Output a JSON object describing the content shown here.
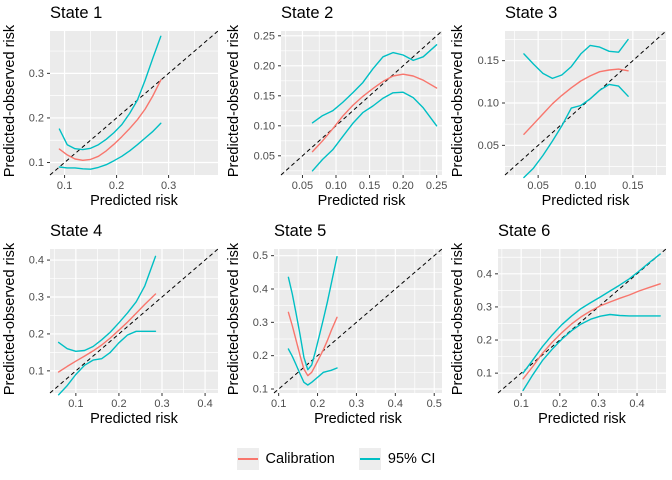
{
  "colors": {
    "panel_background": "#EBEBEB",
    "gridline": "#FFFFFF",
    "calibration": "#F8766D",
    "ci": "#00BFC4",
    "reference": "#000000",
    "tick_text": "#4D4D4D",
    "tick_mark": "#333333"
  },
  "legend": {
    "items": [
      {
        "label": "Calibration",
        "color": "#F8766D"
      },
      {
        "label": "95% CI",
        "color": "#00BFC4"
      }
    ]
  },
  "chart_data": [
    {
      "type": "line",
      "title": "State 1",
      "xlabel": "Predicted risk",
      "ylabel": "Predicted-observed risk",
      "xlim": [
        0.072,
        0.395
      ],
      "ylim": [
        0.072,
        0.395
      ],
      "xticks": {
        "values": [
          0.1,
          0.2,
          0.3
        ],
        "labels": [
          "0.1",
          "0.2",
          "0.3"
        ]
      },
      "yticks": {
        "values": [
          0.1,
          0.2,
          0.3
        ],
        "labels": [
          "0.1",
          "0.2",
          "0.3"
        ]
      },
      "reference_line": "y = x (dashed)",
      "series": [
        {
          "name": "Calibration",
          "color_key": "calibration",
          "x": [
            0.09,
            0.105,
            0.12,
            0.135,
            0.15,
            0.165,
            0.18,
            0.195,
            0.21,
            0.225,
            0.24,
            0.255,
            0.27,
            0.285
          ],
          "y": [
            0.13,
            0.117,
            0.108,
            0.105,
            0.107,
            0.114,
            0.126,
            0.141,
            0.158,
            0.176,
            0.196,
            0.22,
            0.25,
            0.285
          ]
        },
        {
          "name": "95% CI upper",
          "color_key": "ci",
          "x": [
            0.09,
            0.105,
            0.12,
            0.135,
            0.15,
            0.165,
            0.18,
            0.195,
            0.21,
            0.225,
            0.24,
            0.255,
            0.27,
            0.285
          ],
          "y": [
            0.175,
            0.14,
            0.131,
            0.129,
            0.132,
            0.14,
            0.152,
            0.167,
            0.185,
            0.21,
            0.24,
            0.285,
            0.335,
            0.383
          ]
        },
        {
          "name": "95% CI lower",
          "color_key": "ci",
          "x": [
            0.09,
            0.105,
            0.12,
            0.135,
            0.15,
            0.165,
            0.18,
            0.195,
            0.21,
            0.225,
            0.24,
            0.255,
            0.27,
            0.285
          ],
          "y": [
            0.09,
            0.088,
            0.088,
            0.086,
            0.085,
            0.089,
            0.095,
            0.104,
            0.114,
            0.126,
            0.14,
            0.155,
            0.17,
            0.188
          ]
        }
      ]
    },
    {
      "type": "line",
      "title": "State 2",
      "xlabel": "Predicted risk",
      "ylabel": "Predicted-observed risk",
      "xlim": [
        0.018,
        0.258
      ],
      "ylim": [
        0.018,
        0.258
      ],
      "xticks": {
        "values": [
          0.05,
          0.1,
          0.15,
          0.2,
          0.25
        ],
        "labels": [
          "0.05",
          "0.10",
          "0.15",
          "0.20",
          "0.25"
        ]
      },
      "yticks": {
        "values": [
          0.05,
          0.1,
          0.15,
          0.2,
          0.25
        ],
        "labels": [
          "0.05",
          "0.10",
          "0.15",
          "0.20",
          "0.25"
        ]
      },
      "reference_line": "y = x (dashed)",
      "series": [
        {
          "name": "Calibration",
          "color_key": "calibration",
          "x": [
            0.065,
            0.08,
            0.095,
            0.11,
            0.125,
            0.14,
            0.155,
            0.17,
            0.185,
            0.2,
            0.215,
            0.23,
            0.25
          ],
          "y": [
            0.057,
            0.075,
            0.095,
            0.116,
            0.134,
            0.149,
            0.162,
            0.174,
            0.183,
            0.186,
            0.183,
            0.176,
            0.163
          ]
        },
        {
          "name": "95% CI upper",
          "color_key": "ci",
          "x": [
            0.065,
            0.08,
            0.095,
            0.11,
            0.125,
            0.14,
            0.155,
            0.17,
            0.185,
            0.2,
            0.215,
            0.23,
            0.25
          ],
          "y": [
            0.105,
            0.117,
            0.125,
            0.139,
            0.155,
            0.172,
            0.195,
            0.215,
            0.222,
            0.218,
            0.209,
            0.215,
            0.235
          ]
        },
        {
          "name": "95% CI lower",
          "color_key": "ci",
          "x": [
            0.065,
            0.08,
            0.095,
            0.11,
            0.125,
            0.14,
            0.155,
            0.17,
            0.185,
            0.2,
            0.215,
            0.23,
            0.25
          ],
          "y": [
            0.025,
            0.044,
            0.06,
            0.082,
            0.104,
            0.122,
            0.133,
            0.146,
            0.155,
            0.156,
            0.147,
            0.13,
            0.1
          ]
        }
      ]
    },
    {
      "type": "line",
      "title": "State 3",
      "xlabel": "Predicted risk",
      "ylabel": "Predicted-observed risk",
      "xlim": [
        0.015,
        0.185
      ],
      "ylim": [
        0.015,
        0.185
      ],
      "xticks": {
        "values": [
          0.05,
          0.1,
          0.15
        ],
        "labels": [
          "0.05",
          "0.10",
          "0.15"
        ]
      },
      "yticks": {
        "values": [
          0.05,
          0.1,
          0.15
        ],
        "labels": [
          "0.05",
          "0.10",
          "0.15"
        ]
      },
      "reference_line": "y = x (dashed)",
      "series": [
        {
          "name": "Calibration",
          "color_key": "calibration",
          "x": [
            0.035,
            0.045,
            0.055,
            0.065,
            0.075,
            0.085,
            0.095,
            0.105,
            0.115,
            0.125,
            0.135,
            0.145
          ],
          "y": [
            0.063,
            0.075,
            0.087,
            0.099,
            0.109,
            0.118,
            0.126,
            0.132,
            0.137,
            0.139,
            0.14,
            0.138
          ]
        },
        {
          "name": "95% CI upper",
          "color_key": "ci",
          "x": [
            0.035,
            0.045,
            0.055,
            0.065,
            0.075,
            0.085,
            0.095,
            0.105,
            0.115,
            0.125,
            0.135,
            0.145
          ],
          "y": [
            0.158,
            0.146,
            0.135,
            0.129,
            0.133,
            0.143,
            0.158,
            0.168,
            0.166,
            0.161,
            0.16,
            0.175
          ]
        },
        {
          "name": "95% CI lower",
          "color_key": "ci",
          "x": [
            0.035,
            0.045,
            0.055,
            0.065,
            0.075,
            0.085,
            0.095,
            0.105,
            0.115,
            0.125,
            0.135,
            0.145
          ],
          "y": [
            0.012,
            0.023,
            0.038,
            0.055,
            0.073,
            0.094,
            0.097,
            0.105,
            0.115,
            0.122,
            0.12,
            0.108
          ]
        }
      ]
    },
    {
      "type": "line",
      "title": "State 4",
      "xlabel": "Predicted risk",
      "ylabel": "Predicted-observed risk",
      "xlim": [
        0.04,
        0.43
      ],
      "ylim": [
        0.04,
        0.43
      ],
      "xticks": {
        "values": [
          0.1,
          0.2,
          0.3,
          0.4
        ],
        "labels": [
          "0.1",
          "0.2",
          "0.3",
          "0.4"
        ]
      },
      "yticks": {
        "values": [
          0.1,
          0.2,
          0.3,
          0.4
        ],
        "labels": [
          "0.1",
          "0.2",
          "0.3",
          "0.4"
        ]
      },
      "reference_line": "y = x (dashed)",
      "series": [
        {
          "name": "Calibration",
          "color_key": "calibration",
          "x": [
            0.06,
            0.08,
            0.1,
            0.12,
            0.14,
            0.16,
            0.18,
            0.2,
            0.22,
            0.24,
            0.26,
            0.285
          ],
          "y": [
            0.097,
            0.112,
            0.126,
            0.14,
            0.154,
            0.17,
            0.189,
            0.21,
            0.232,
            0.256,
            0.28,
            0.308
          ]
        },
        {
          "name": "95% CI upper",
          "color_key": "ci",
          "x": [
            0.06,
            0.08,
            0.1,
            0.12,
            0.14,
            0.16,
            0.18,
            0.2,
            0.22,
            0.24,
            0.26,
            0.285
          ],
          "y": [
            0.177,
            0.16,
            0.153,
            0.155,
            0.166,
            0.184,
            0.205,
            0.23,
            0.257,
            0.287,
            0.33,
            0.41
          ]
        },
        {
          "name": "95% CI lower",
          "color_key": "ci",
          "x": [
            0.06,
            0.08,
            0.1,
            0.12,
            0.14,
            0.16,
            0.18,
            0.2,
            0.22,
            0.24,
            0.26,
            0.285
          ],
          "y": [
            0.035,
            0.06,
            0.09,
            0.115,
            0.129,
            0.133,
            0.15,
            0.176,
            0.197,
            0.207,
            0.207,
            0.207
          ]
        }
      ]
    },
    {
      "type": "line",
      "title": "State 5",
      "xlabel": "Predicted risk",
      "ylabel": "Predicted-observed risk",
      "xlim": [
        0.088,
        0.52
      ],
      "ylim": [
        0.088,
        0.52
      ],
      "xticks": {
        "values": [
          0.1,
          0.2,
          0.3,
          0.4,
          0.5
        ],
        "labels": [
          "0.1",
          "0.2",
          "0.3",
          "0.4",
          "0.5"
        ]
      },
      "yticks": {
        "values": [
          0.1,
          0.2,
          0.3,
          0.4,
          0.5
        ],
        "labels": [
          "0.1",
          "0.2",
          "0.3",
          "0.4",
          "0.5"
        ]
      },
      "reference_line": "y = x (dashed)",
      "series": [
        {
          "name": "Calibration",
          "color_key": "calibration",
          "x": [
            0.125,
            0.135,
            0.145,
            0.155,
            0.165,
            0.175,
            0.185,
            0.195,
            0.205,
            0.215,
            0.225,
            0.235,
            0.25
          ],
          "y": [
            0.33,
            0.29,
            0.245,
            0.2,
            0.16,
            0.14,
            0.15,
            0.172,
            0.195,
            0.218,
            0.245,
            0.275,
            0.315
          ]
        },
        {
          "name": "95% CI upper",
          "color_key": "ci",
          "x": [
            0.125,
            0.135,
            0.145,
            0.155,
            0.165,
            0.175,
            0.185,
            0.195,
            0.205,
            0.215,
            0.225,
            0.235,
            0.25
          ],
          "y": [
            0.435,
            0.385,
            0.325,
            0.262,
            0.195,
            0.158,
            0.172,
            0.215,
            0.262,
            0.31,
            0.36,
            0.415,
            0.497
          ]
        },
        {
          "name": "95% CI lower",
          "color_key": "ci",
          "x": [
            0.125,
            0.135,
            0.145,
            0.155,
            0.165,
            0.175,
            0.185,
            0.195,
            0.205,
            0.215,
            0.225,
            0.235,
            0.25
          ],
          "y": [
            0.22,
            0.198,
            0.172,
            0.145,
            0.12,
            0.112,
            0.12,
            0.13,
            0.14,
            0.15,
            0.153,
            0.156,
            0.163
          ]
        }
      ]
    },
    {
      "type": "line",
      "title": "State 6",
      "xlabel": "Predicted risk",
      "ylabel": "Predicted-observed risk",
      "xlim": [
        0.04,
        0.475
      ],
      "ylim": [
        0.04,
        0.475
      ],
      "xticks": {
        "values": [
          0.1,
          0.2,
          0.3,
          0.4
        ],
        "labels": [
          "0.1",
          "0.2",
          "0.3",
          "0.4"
        ]
      },
      "yticks": {
        "values": [
          0.1,
          0.2,
          0.3,
          0.4
        ],
        "labels": [
          "0.1",
          "0.2",
          "0.3",
          "0.4"
        ]
      },
      "reference_line": "y = x (dashed)",
      "series": [
        {
          "name": "Calibration",
          "color_key": "calibration",
          "x": [
            0.105,
            0.13,
            0.155,
            0.18,
            0.205,
            0.23,
            0.255,
            0.28,
            0.305,
            0.33,
            0.355,
            0.38,
            0.405,
            0.43,
            0.46
          ],
          "y": [
            0.083,
            0.12,
            0.16,
            0.193,
            0.222,
            0.248,
            0.27,
            0.288,
            0.303,
            0.315,
            0.326,
            0.336,
            0.348,
            0.358,
            0.37
          ]
        },
        {
          "name": "95% CI upper",
          "color_key": "ci",
          "x": [
            0.105,
            0.13,
            0.155,
            0.18,
            0.205,
            0.23,
            0.255,
            0.28,
            0.305,
            0.33,
            0.355,
            0.38,
            0.405,
            0.43,
            0.46
          ],
          "y": [
            0.1,
            0.14,
            0.18,
            0.215,
            0.246,
            0.272,
            0.295,
            0.313,
            0.33,
            0.348,
            0.366,
            0.385,
            0.408,
            0.432,
            0.46
          ]
        },
        {
          "name": "95% CI lower",
          "color_key": "ci",
          "x": [
            0.105,
            0.13,
            0.155,
            0.18,
            0.205,
            0.23,
            0.255,
            0.28,
            0.305,
            0.33,
            0.355,
            0.38,
            0.405,
            0.43,
            0.46
          ],
          "y": [
            0.048,
            0.095,
            0.138,
            0.172,
            0.202,
            0.228,
            0.248,
            0.263,
            0.272,
            0.277,
            0.274,
            0.273,
            0.273,
            0.273,
            0.273
          ]
        }
      ]
    }
  ]
}
